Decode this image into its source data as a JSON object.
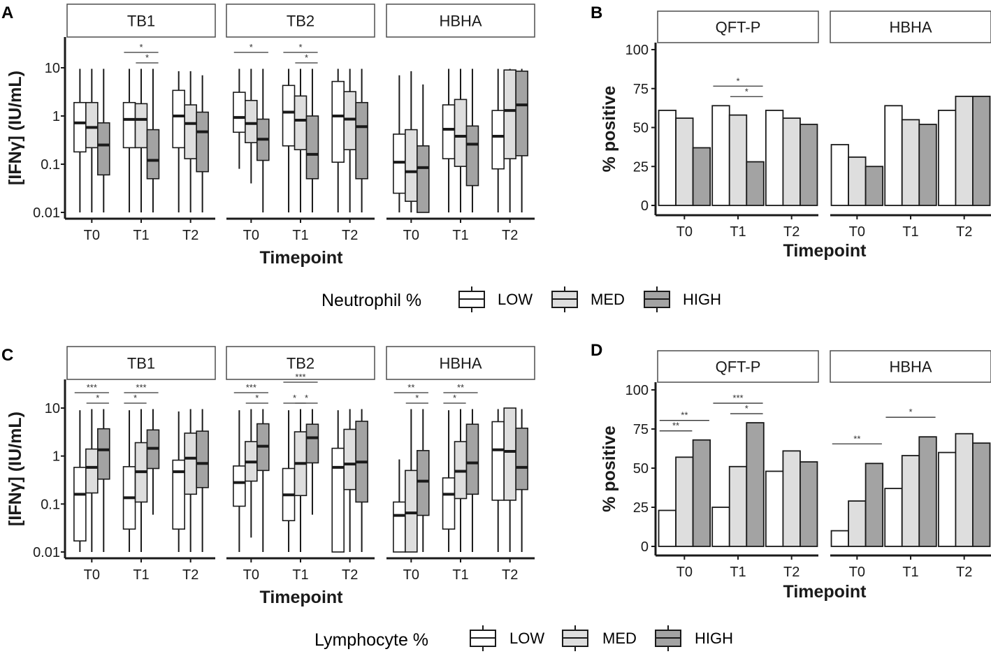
{
  "colors": {
    "LOW": "#ffffff",
    "MED": "#dedede",
    "HIGH": "#a3a3a3",
    "ink": "#1a1a1a",
    "strip": "#ffffff"
  },
  "panels": {
    "A": "A",
    "B": "B",
    "C": "C",
    "D": "D"
  },
  "legends": {
    "top": {
      "title": "Neutrophil %",
      "items": [
        "LOW",
        "MED",
        "HIGH"
      ]
    },
    "bottom": {
      "title": "Lymphocyte %",
      "items": [
        "LOW",
        "MED",
        "HIGH"
      ]
    }
  },
  "chart_data": [
    {
      "id": "A",
      "type": "box",
      "title": "",
      "xlabel": "Timepoint",
      "ylabel": "[IFNγ] (IU/mL)",
      "yscale": "log10",
      "ylim": [
        0.008,
        40
      ],
      "yticks": [
        0.01,
        0.1,
        1,
        10
      ],
      "ytick_labels": [
        "0.01",
        "0.1",
        "1",
        "10"
      ],
      "categories": [
        "T0",
        "T1",
        "T2"
      ],
      "groups": [
        "LOW",
        "MED",
        "HIGH"
      ],
      "facets": [
        {
          "label": "TB1",
          "boxes": [
            [
              [
                0.01,
                0.18,
                0.72,
                1.9,
                9.5
              ],
              [
                0.01,
                0.22,
                0.58,
                1.9,
                9.5
              ],
              [
                0.01,
                0.06,
                0.25,
                0.72,
                9.5
              ]
            ],
            [
              [
                0.01,
                0.22,
                0.85,
                1.9,
                9.5
              ],
              [
                0.01,
                0.22,
                0.85,
                1.8,
                9.5
              ],
              [
                0.01,
                0.05,
                0.12,
                0.52,
                9.5
              ]
            ],
            [
              [
                0.01,
                0.22,
                1.0,
                3.4,
                8.5
              ],
              [
                0.01,
                0.13,
                0.7,
                1.7,
                8.5
              ],
              [
                0.01,
                0.07,
                0.47,
                1.2,
                7
              ]
            ]
          ],
          "sig": [
            {
              "cat": 0,
              "from": 0,
              "to": 0,
              "label": ""
            }
          ]
        },
        {
          "label": "TB2",
          "boxes": [
            [
              [
                0.08,
                0.46,
                0.93,
                3.1,
                9.5
              ],
              [
                0.04,
                0.28,
                0.7,
                2.1,
                9.5
              ],
              [
                0.01,
                0.12,
                0.33,
                0.86,
                9.5
              ]
            ],
            [
              [
                0.01,
                0.24,
                1.2,
                4.3,
                9.5
              ],
              [
                0.01,
                0.2,
                0.82,
                2.6,
                9.5
              ],
              [
                0.01,
                0.05,
                0.16,
                1.0,
                9.5
              ]
            ],
            [
              [
                0.01,
                0.11,
                1.0,
                5.2,
                9.5
              ],
              [
                0.01,
                0.2,
                0.86,
                3.2,
                9.5
              ],
              [
                0.01,
                0.05,
                0.6,
                1.9,
                9.5
              ]
            ]
          ]
        },
        {
          "label": "HBHA",
          "boxes": [
            [
              [
                0.01,
                0.025,
                0.11,
                0.42,
                7
              ],
              [
                0.01,
                0.017,
                0.07,
                0.52,
                8.5
              ],
              [
                0.01,
                0.01,
                0.085,
                0.24,
                4.5
              ]
            ],
            [
              [
                0.01,
                0.13,
                0.53,
                1.7,
                9.5
              ],
              [
                0.01,
                0.09,
                0.38,
                2.2,
                9.5
              ],
              [
                0.01,
                0.036,
                0.26,
                0.62,
                9.5
              ]
            ],
            [
              [
                0.01,
                0.08,
                0.38,
                1.3,
                9.5
              ],
              [
                0.01,
                0.13,
                1.3,
                9.0,
                9.5
              ],
              [
                0.01,
                0.15,
                1.7,
                8.5,
                9.5
              ]
            ]
          ]
        }
      ],
      "annotations": [
        {
          "facet": 0,
          "cat": 1,
          "from": 0,
          "to": 2,
          "level": 0,
          "label": "*"
        },
        {
          "facet": 0,
          "cat": 1,
          "from": 1,
          "to": 2,
          "level": 1,
          "label": "*"
        },
        {
          "facet": 1,
          "cat": 0,
          "from": 0,
          "to": 2,
          "level": 0,
          "label": "*"
        },
        {
          "facet": 1,
          "cat": 1,
          "from": 0,
          "to": 2,
          "level": 0,
          "label": "*"
        },
        {
          "facet": 1,
          "cat": 1,
          "from": 1,
          "to": 2,
          "level": 1,
          "label": "*"
        }
      ]
    },
    {
      "id": "B",
      "type": "bar",
      "title": "",
      "xlabel": "Timepoint",
      "ylabel": "% positive",
      "ylim": [
        0,
        100
      ],
      "yticks": [
        0,
        25,
        50,
        75,
        100
      ],
      "categories": [
        "T0",
        "T1",
        "T2"
      ],
      "groups": [
        "LOW",
        "MED",
        "HIGH"
      ],
      "facets": [
        {
          "label": "QFT-P",
          "series": [
            {
              "name": "LOW",
              "values": [
                61,
                64,
                61
              ]
            },
            {
              "name": "MED",
              "values": [
                56,
                58,
                56
              ]
            },
            {
              "name": "HIGH",
              "values": [
                37,
                28,
                52
              ]
            }
          ]
        },
        {
          "label": "HBHA",
          "series": [
            {
              "name": "LOW",
              "values": [
                39,
                64,
                61
              ]
            },
            {
              "name": "MED",
              "values": [
                31,
                55,
                70
              ]
            },
            {
              "name": "HIGH",
              "values": [
                25,
                52,
                70
              ]
            }
          ]
        }
      ],
      "annotations": [
        {
          "facet": 0,
          "cat": 1,
          "from": 0,
          "to": 2,
          "level": 0,
          "label": "*"
        },
        {
          "facet": 0,
          "cat": 1,
          "from": 1,
          "to": 2,
          "level": 1,
          "label": "*"
        }
      ]
    },
    {
      "id": "C",
      "type": "box",
      "title": "",
      "xlabel": "Timepoint",
      "ylabel": "[IFNγ] (IU/mL)",
      "yscale": "log10",
      "ylim": [
        0.008,
        40
      ],
      "yticks": [
        0.01,
        0.1,
        1,
        10
      ],
      "ytick_labels": [
        "0.01",
        "0.1",
        "1",
        "10"
      ],
      "categories": [
        "T0",
        "T1",
        "T2"
      ],
      "groups": [
        "LOW",
        "MED",
        "HIGH"
      ],
      "facets": [
        {
          "label": "TB1",
          "boxes": [
            [
              [
                0.01,
                0.017,
                0.16,
                0.58,
                9.0
              ],
              [
                0.01,
                0.17,
                0.58,
                1.4,
                9.5
              ],
              [
                0.01,
                0.33,
                1.35,
                3.7,
                9.5
              ]
            ],
            [
              [
                0.01,
                0.03,
                0.135,
                0.6,
                9.0
              ],
              [
                0.01,
                0.11,
                0.47,
                1.9,
                9.5
              ],
              [
                0.06,
                0.55,
                1.45,
                3.5,
                9.5
              ]
            ],
            [
              [
                0.01,
                0.03,
                0.47,
                0.82,
                8.5
              ],
              [
                0.01,
                0.16,
                0.9,
                3.0,
                9.5
              ],
              [
                0.01,
                0.22,
                0.7,
                3.3,
                9.5
              ]
            ]
          ]
        },
        {
          "label": "TB2",
          "boxes": [
            [
              [
                0.01,
                0.09,
                0.28,
                0.62,
                9.0
              ],
              [
                0.02,
                0.3,
                0.75,
                2.0,
                9.5
              ],
              [
                0.01,
                0.5,
                1.6,
                4.7,
                9.5
              ]
            ],
            [
              [
                0.01,
                0.045,
                0.155,
                0.55,
                9.0
              ],
              [
                0.01,
                0.15,
                0.7,
                3.2,
                9.5
              ],
              [
                0.06,
                0.72,
                2.4,
                4.6,
                9.5
              ]
            ],
            [
              [
                0.01,
                0.01,
                0.58,
                1.45,
                9.0
              ],
              [
                0.01,
                0.2,
                0.68,
                3.6,
                9.5
              ],
              [
                0.01,
                0.11,
                0.75,
                5.3,
                9.5
              ]
            ]
          ]
        },
        {
          "label": "HBHA",
          "boxes": [
            [
              [
                0.01,
                0.01,
                0.058,
                0.11,
                0.85
              ],
              [
                0.01,
                0.01,
                0.065,
                0.5,
                9.5
              ],
              [
                0.01,
                0.058,
                0.3,
                1.3,
                9.5
              ]
            ],
            [
              [
                0.01,
                0.03,
                0.16,
                0.35,
                9.0
              ],
              [
                0.01,
                0.13,
                0.48,
                2.0,
                9.5
              ],
              [
                0.01,
                0.16,
                0.72,
                4.6,
                9.5
              ]
            ],
            [
              [
                0.01,
                0.12,
                1.35,
                5.2,
                9.5
              ],
              [
                0.01,
                0.12,
                1.25,
                10,
                10
              ],
              [
                0.01,
                0.2,
                0.58,
                3.8,
                9.5
              ]
            ]
          ]
        }
      ],
      "annotations": [
        {
          "facet": 0,
          "cat": 0,
          "from": 0,
          "to": 2,
          "level": 0,
          "label": "***"
        },
        {
          "facet": 0,
          "cat": 0,
          "from": 1,
          "to": 2,
          "level": 1,
          "label": "*"
        },
        {
          "facet": 0,
          "cat": 1,
          "from": 0,
          "to": 2,
          "level": 0,
          "label": "***"
        },
        {
          "facet": 0,
          "cat": 1,
          "from": 0,
          "to": 1,
          "level": 1,
          "label": "*"
        },
        {
          "facet": 1,
          "cat": 0,
          "from": 0,
          "to": 2,
          "level": 0,
          "label": "***"
        },
        {
          "facet": 1,
          "cat": 0,
          "from": 1,
          "to": 2,
          "level": 1,
          "label": "*"
        },
        {
          "facet": 1,
          "cat": 1,
          "from": 0,
          "to": 2,
          "level": -1,
          "label": "***"
        },
        {
          "facet": 1,
          "cat": 1,
          "from": 0,
          "to": 1,
          "level": 1,
          "label": "*"
        },
        {
          "facet": 1,
          "cat": 1,
          "from": 1,
          "to": 2,
          "level": 1,
          "label": "*"
        },
        {
          "facet": 2,
          "cat": 0,
          "from": 0,
          "to": 2,
          "level": 0,
          "label": "**"
        },
        {
          "facet": 2,
          "cat": 0,
          "from": 1,
          "to": 2,
          "level": 1,
          "label": "*"
        },
        {
          "facet": 2,
          "cat": 1,
          "from": 0,
          "to": 2,
          "level": 0,
          "label": "**"
        },
        {
          "facet": 2,
          "cat": 1,
          "from": 0,
          "to": 1,
          "level": 1,
          "label": "*"
        }
      ]
    },
    {
      "id": "D",
      "type": "bar",
      "title": "",
      "xlabel": "Timepoint",
      "ylabel": "% positive",
      "ylim": [
        0,
        100
      ],
      "yticks": [
        0,
        25,
        50,
        75,
        100
      ],
      "categories": [
        "T0",
        "T1",
        "T2"
      ],
      "groups": [
        "LOW",
        "MED",
        "HIGH"
      ],
      "facets": [
        {
          "label": "QFT-P",
          "series": [
            {
              "name": "LOW",
              "values": [
                23,
                25,
                48
              ]
            },
            {
              "name": "MED",
              "values": [
                57,
                51,
                61
              ]
            },
            {
              "name": "HIGH",
              "values": [
                68,
                79,
                54
              ]
            }
          ]
        },
        {
          "label": "HBHA",
          "series": [
            {
              "name": "LOW",
              "values": [
                10,
                37,
                60
              ]
            },
            {
              "name": "MED",
              "values": [
                29,
                58,
                72
              ]
            },
            {
              "name": "HIGH",
              "values": [
                53,
                70,
                66
              ]
            }
          ]
        }
      ],
      "annotations": [
        {
          "facet": 0,
          "cat": 0,
          "from": 0,
          "to": 2,
          "level": 0,
          "label": "**"
        },
        {
          "facet": 0,
          "cat": 0,
          "from": 0,
          "to": 1,
          "level": 1,
          "label": "**"
        },
        {
          "facet": 0,
          "cat": 1,
          "from": 0,
          "to": 2,
          "level": 0,
          "label": "***"
        },
        {
          "facet": 0,
          "cat": 1,
          "from": 1,
          "to": 2,
          "level": 1,
          "label": "*"
        },
        {
          "facet": 1,
          "cat": 0,
          "from": 0,
          "to": 2,
          "level": 0,
          "label": "**"
        },
        {
          "facet": 1,
          "cat": 1,
          "from": 0,
          "to": 2,
          "level": 0,
          "label": "*"
        }
      ]
    }
  ]
}
